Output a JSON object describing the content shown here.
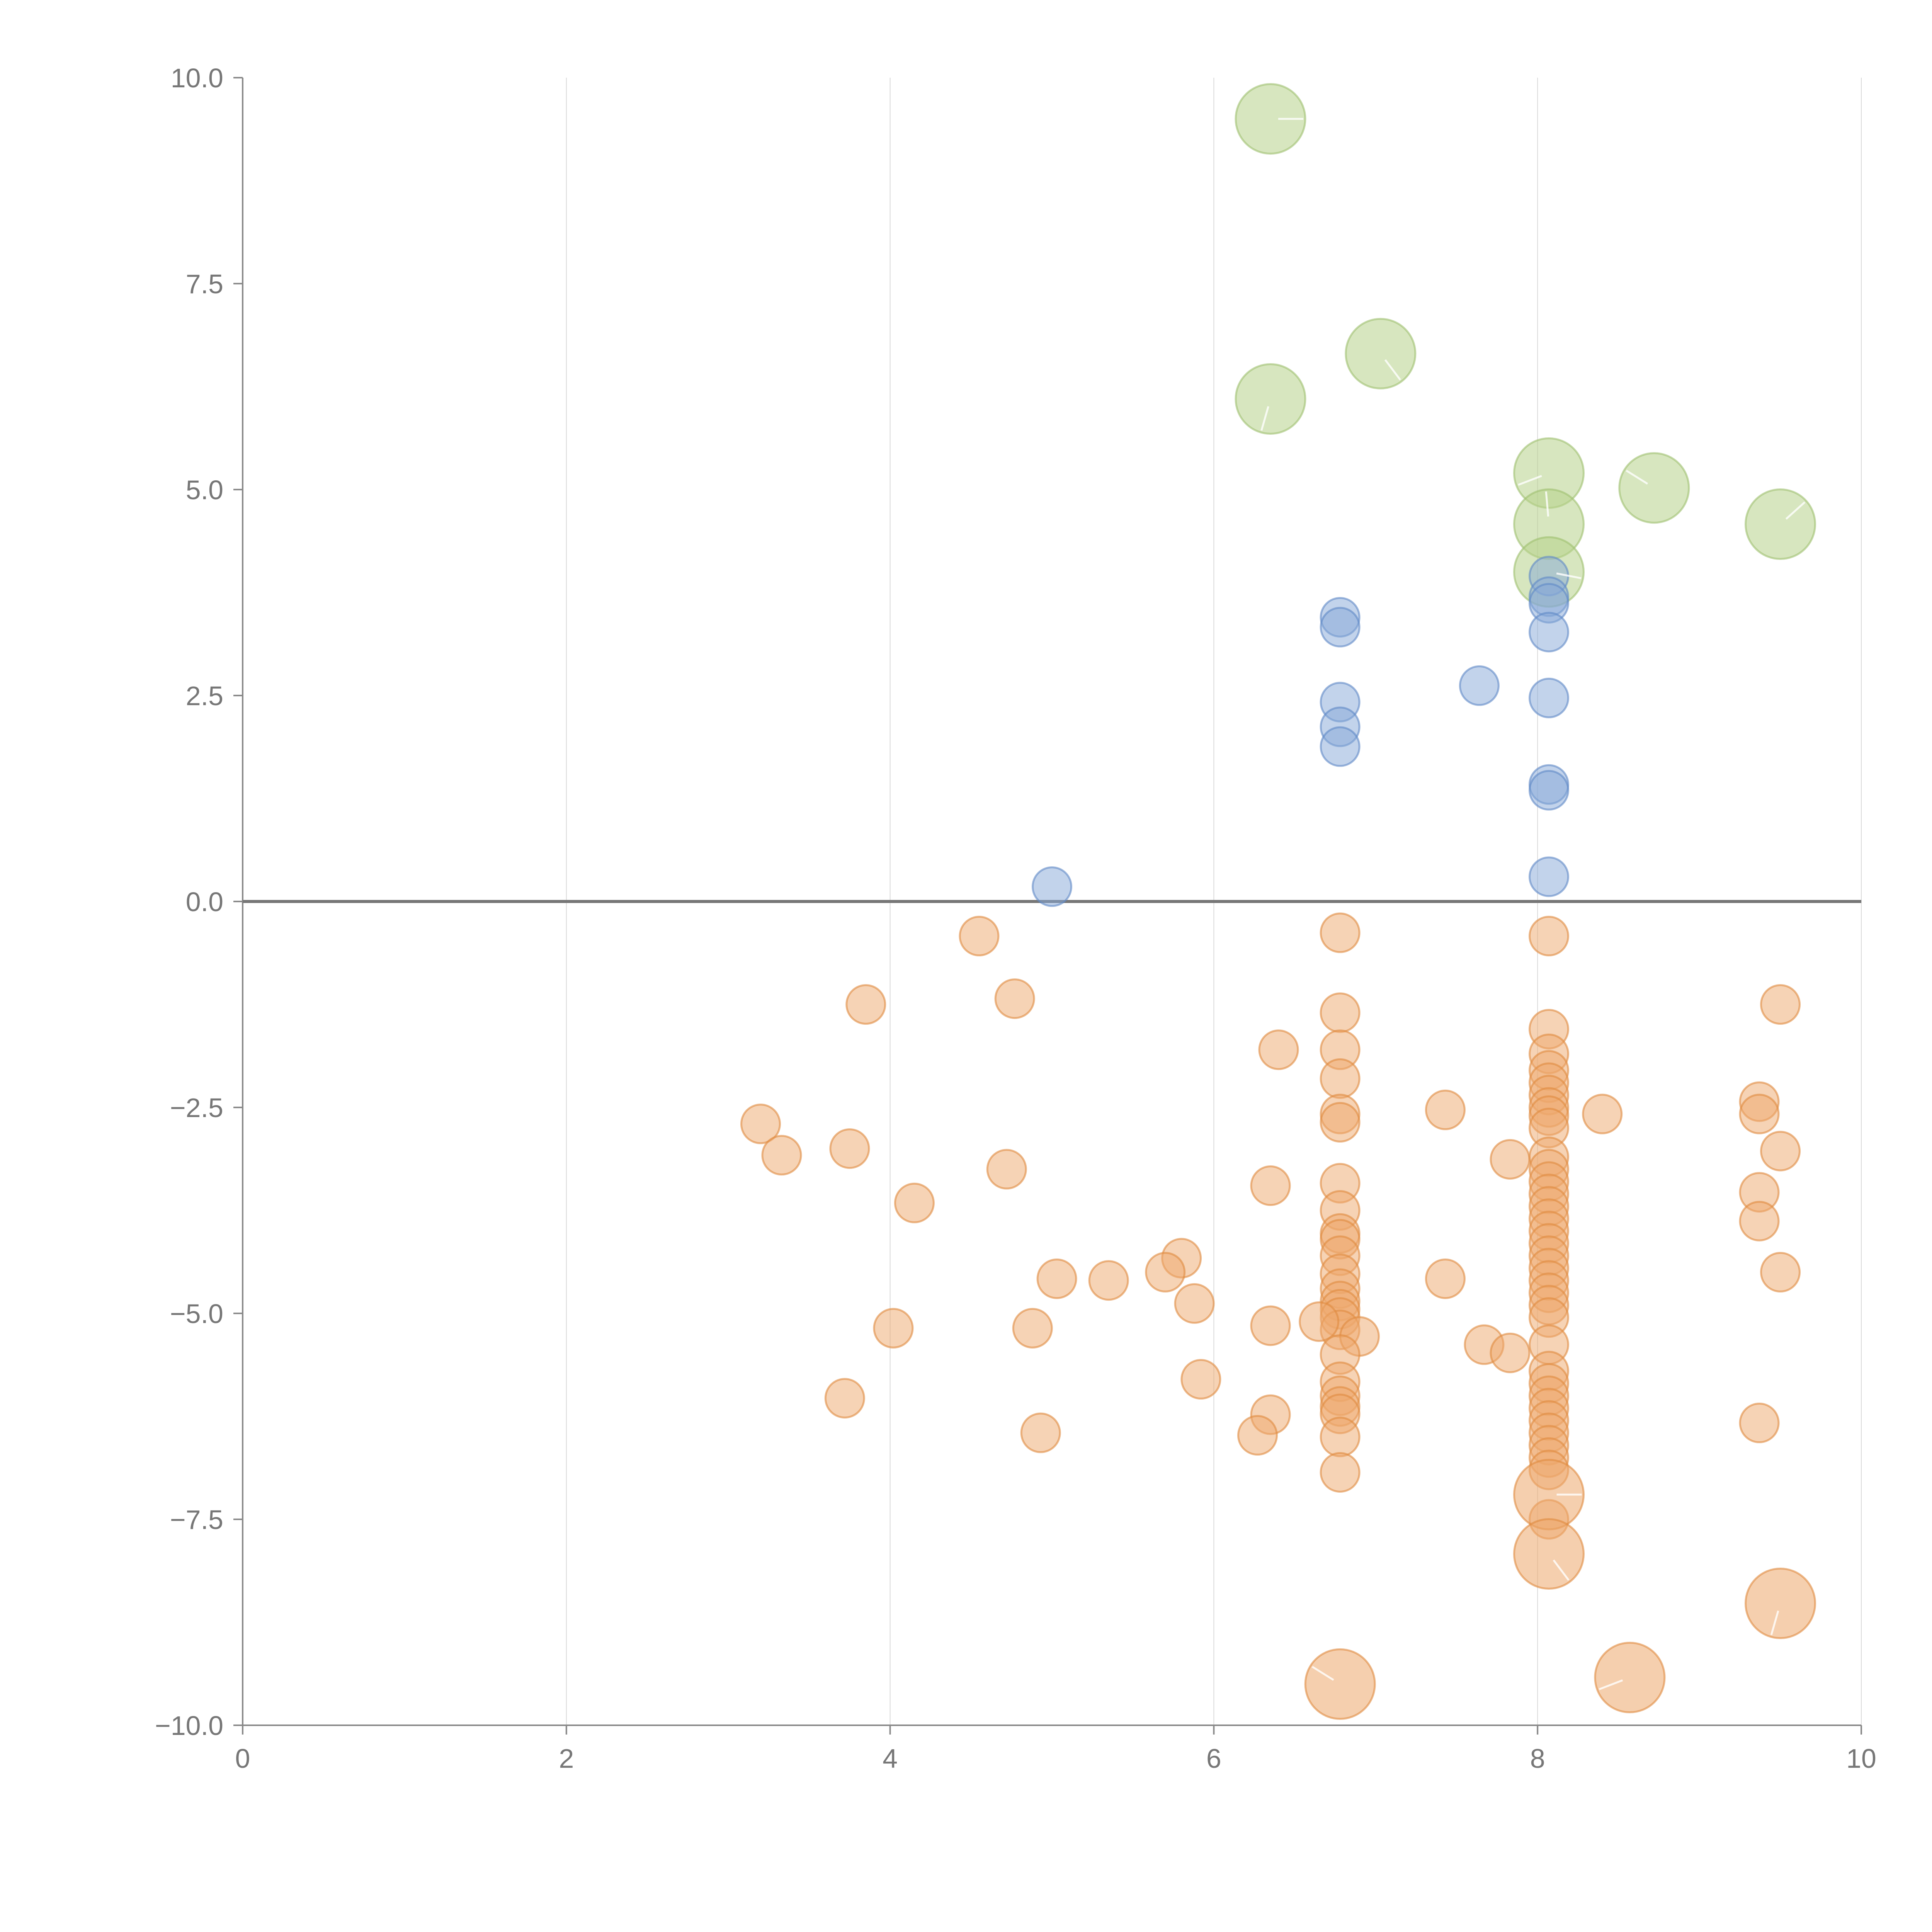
{
  "chart_data": {
    "type": "scatter",
    "title": "",
    "xlabel": "",
    "ylabel": "",
    "xlim": [
      0,
      10
    ],
    "ylim": [
      -10,
      10
    ],
    "grid": "vertical",
    "x_ticks": [
      "0",
      "2",
      "4",
      "6",
      "8",
      "10"
    ],
    "x_tick_values": [
      0,
      2,
      4,
      6,
      8,
      10
    ],
    "y_ticks": [
      "10.0",
      "7.5",
      "5.0",
      "2.5",
      "0.0",
      "−2.5",
      "−5.0",
      "−7.5",
      "−10.0"
    ],
    "y_tick_values": [
      10,
      7.5,
      5,
      2.5,
      0,
      -2.5,
      -5,
      -7.5,
      -10
    ],
    "reference_line_y": 0,
    "colors": {
      "green_fill": "#b7d18a",
      "green_stroke": "#9fc06f",
      "blue_fill": "#86a8d8",
      "blue_stroke": "#5f89c7",
      "orange_fill": "#eda86c",
      "orange_stroke": "#e08a40",
      "zero_line": "#777777",
      "axis": "#8a8a8a",
      "grid": "#d9d9d9"
    },
    "series": [
      {
        "name": "green",
        "color_key": "green",
        "size": "large",
        "points": [
          [
            6.35,
            9.5
          ],
          [
            7.03,
            6.65
          ],
          [
            6.35,
            6.1
          ],
          [
            8.07,
            5.2
          ],
          [
            8.72,
            5.02
          ],
          [
            8.07,
            4.58
          ],
          [
            9.5,
            4.58
          ],
          [
            8.07,
            4.0
          ]
        ]
      },
      {
        "name": "blue",
        "color_key": "blue",
        "size": "small",
        "points": [
          [
            6.78,
            3.45
          ],
          [
            6.78,
            3.33
          ],
          [
            6.78,
            2.42
          ],
          [
            6.78,
            2.12
          ],
          [
            6.78,
            1.88
          ],
          [
            7.64,
            2.62
          ],
          [
            8.07,
            3.95
          ],
          [
            8.07,
            3.7
          ],
          [
            8.07,
            3.62
          ],
          [
            8.07,
            3.27
          ],
          [
            8.07,
            2.47
          ],
          [
            8.07,
            1.42
          ],
          [
            8.07,
            1.35
          ],
          [
            8.07,
            0.3
          ],
          [
            5.0,
            0.18
          ]
        ]
      },
      {
        "name": "orange",
        "color_key": "orange",
        "size": "small",
        "points": [
          [
            4.55,
            -0.42
          ],
          [
            6.78,
            -0.38
          ],
          [
            8.07,
            -0.42
          ],
          [
            3.85,
            -1.25
          ],
          [
            4.77,
            -1.18
          ],
          [
            9.5,
            -1.25
          ],
          [
            6.78,
            -1.35
          ],
          [
            8.07,
            -1.55
          ],
          [
            6.78,
            -1.8
          ],
          [
            6.4,
            -1.8
          ],
          [
            8.07,
            -1.85
          ],
          [
            6.78,
            -2.15
          ],
          [
            8.07,
            -2.05
          ],
          [
            8.07,
            -2.2
          ],
          [
            8.07,
            -2.35
          ],
          [
            8.07,
            -2.5
          ],
          [
            8.07,
            -2.6
          ],
          [
            8.07,
            -2.75
          ],
          [
            3.2,
            -2.7
          ],
          [
            3.33,
            -3.08
          ],
          [
            3.75,
            -3.0
          ],
          [
            4.72,
            -3.25
          ],
          [
            4.15,
            -3.66
          ],
          [
            6.78,
            -2.58
          ],
          [
            6.78,
            -2.68
          ],
          [
            7.43,
            -2.53
          ],
          [
            8.4,
            -2.58
          ],
          [
            9.37,
            -2.43
          ],
          [
            9.37,
            -2.58
          ],
          [
            9.5,
            -3.03
          ],
          [
            7.83,
            -3.13
          ],
          [
            8.07,
            -3.1
          ],
          [
            8.07,
            -3.25
          ],
          [
            8.07,
            -3.4
          ],
          [
            8.07,
            -3.55
          ],
          [
            8.07,
            -3.7
          ],
          [
            8.07,
            -3.85
          ],
          [
            8.07,
            -4.0
          ],
          [
            8.07,
            -4.15
          ],
          [
            8.07,
            -4.3
          ],
          [
            8.07,
            -4.45
          ],
          [
            8.07,
            -4.6
          ],
          [
            8.07,
            -4.75
          ],
          [
            8.07,
            -4.9
          ],
          [
            8.07,
            -5.05
          ],
          [
            6.35,
            -3.45
          ],
          [
            6.78,
            -3.42
          ],
          [
            6.78,
            -3.75
          ],
          [
            6.78,
            -4.03
          ],
          [
            6.78,
            -4.1
          ],
          [
            6.78,
            -4.3
          ],
          [
            6.78,
            -4.52
          ],
          [
            6.78,
            -4.7
          ],
          [
            6.78,
            -4.85
          ],
          [
            6.78,
            -4.95
          ],
          [
            6.78,
            -5.05
          ],
          [
            6.78,
            -5.2
          ],
          [
            6.9,
            -5.28
          ],
          [
            6.65,
            -5.1
          ],
          [
            6.78,
            -5.5
          ],
          [
            6.78,
            -5.83
          ],
          [
            6.78,
            -6.0
          ],
          [
            6.78,
            -6.13
          ],
          [
            6.78,
            -6.22
          ],
          [
            6.78,
            -6.5
          ],
          [
            6.78,
            -6.93
          ],
          [
            9.37,
            -3.53
          ],
          [
            9.37,
            -3.88
          ],
          [
            9.5,
            -4.5
          ],
          [
            5.8,
            -4.33
          ],
          [
            5.7,
            -4.5
          ],
          [
            5.35,
            -4.6
          ],
          [
            5.03,
            -4.58
          ],
          [
            5.88,
            -4.88
          ],
          [
            4.02,
            -5.18
          ],
          [
            4.88,
            -5.18
          ],
          [
            6.35,
            -5.15
          ],
          [
            7.43,
            -4.58
          ],
          [
            7.67,
            -5.38
          ],
          [
            7.83,
            -5.48
          ],
          [
            8.07,
            -5.38
          ],
          [
            8.07,
            -5.7
          ],
          [
            8.07,
            -5.85
          ],
          [
            8.07,
            -6.0
          ],
          [
            8.07,
            -6.15
          ],
          [
            8.07,
            -6.3
          ],
          [
            8.07,
            -6.45
          ],
          [
            8.07,
            -6.6
          ],
          [
            8.07,
            -6.75
          ],
          [
            8.07,
            -6.9
          ],
          [
            8.07,
            -7.5
          ],
          [
            5.92,
            -5.8
          ],
          [
            6.35,
            -6.23
          ],
          [
            6.27,
            -6.48
          ],
          [
            3.72,
            -6.03
          ],
          [
            4.93,
            -6.45
          ],
          [
            9.37,
            -6.33
          ]
        ]
      },
      {
        "name": "orange-large",
        "color_key": "orange",
        "size": "large",
        "points": [
          [
            8.07,
            -7.2
          ],
          [
            8.07,
            -7.92
          ],
          [
            9.5,
            -8.52
          ],
          [
            8.57,
            -9.42
          ],
          [
            6.78,
            -9.5
          ]
        ]
      }
    ]
  }
}
